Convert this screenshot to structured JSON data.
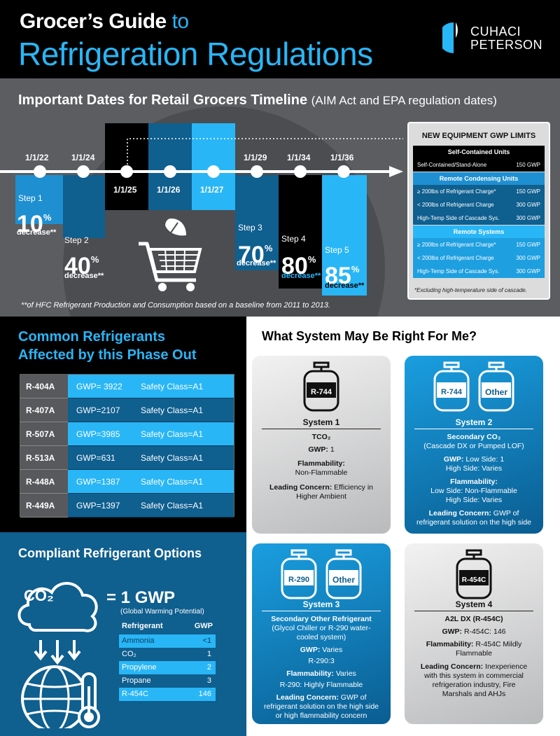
{
  "header": {
    "title_bold": "Grocer’s Guide",
    "title_light": "to",
    "title_line2": "Refrigeration Regulations",
    "logo_line1": "CUHACI",
    "logo_line2": "PETERSON"
  },
  "timeline": {
    "title": "Important Dates for Retail Grocers Timeline",
    "subtitle": "(AIM Act and EPA regulation dates)",
    "dates": [
      "1/1/22",
      "1/1/24",
      "1/1/25",
      "1/1/26",
      "1/1/27",
      "1/1/29",
      "1/1/34",
      "1/1/36"
    ],
    "steps": [
      {
        "label": "Step 1",
        "pct": "10",
        "sup": "%",
        "dec": "decrease**"
      },
      {
        "label": "Step 2",
        "pct": "40",
        "sup": "%",
        "dec": "decrease**"
      },
      {
        "label": "Step 3",
        "pct": "70",
        "sup": "%",
        "dec": "decrease**"
      },
      {
        "label": "Step 4",
        "pct": "80",
        "sup": "%",
        "dec": "decrease**"
      },
      {
        "label": "Step 5",
        "pct": "85",
        "sup": "%",
        "dec": "decrease**"
      }
    ],
    "footnote": "**of HFC Refrigerant Production and Consumption based on a baseline from 2011 to 2013."
  },
  "gwp_limits": {
    "title": "NEW EQUIPMENT GWP LIMITS",
    "sections": [
      {
        "head": "Self-Contained Units",
        "rows": [
          {
            "label": "Self-Contained/Stand-Alone",
            "value": "150 GWP"
          }
        ]
      },
      {
        "head": "Remote Condensing Units",
        "rows": [
          {
            "label": "≥ 200lbs of Refrigerant Charge*",
            "value": "150 GWP"
          },
          {
            "label": "< 200lbs of Refrigerant Charge",
            "value": "300 GWP"
          },
          {
            "label": "High-Temp Side of Cascade Sys.",
            "value": "300 GWP"
          }
        ]
      },
      {
        "head": "Remote Systems",
        "rows": [
          {
            "label": "≥ 200lbs of Refrigerant Charge*",
            "value": "150 GWP"
          },
          {
            "label": "< 200lbs of Refrigerant Charge",
            "value": "300 GWP"
          },
          {
            "label": "High-Temp Side of Cascade Sys.",
            "value": "300 GWP"
          }
        ]
      }
    ],
    "note": "*Excluding high-temperature side of cascade."
  },
  "common": {
    "title_line1": "Common Refrigerants",
    "title_line2": "Affected by this Phase Out",
    "rows": [
      {
        "name": "R-404A",
        "gwp": "GWP= 3922",
        "safety": "Safety Class=A1"
      },
      {
        "name": "R-407A",
        "gwp": "GWP=2107",
        "safety": "Safety Class=A1"
      },
      {
        "name": "R-507A",
        "gwp": "GWP=3985",
        "safety": "Safety Class=A1"
      },
      {
        "name": "R-513A",
        "gwp": "GWP=631",
        "safety": "Safety Class=A1"
      },
      {
        "name": "R-448A",
        "gwp": "GWP=1387",
        "safety": "Safety Class=A1"
      },
      {
        "name": "R-449A",
        "gwp": "GWP=1397",
        "safety": "Safety Class=A1"
      }
    ]
  },
  "compliant": {
    "title": "Compliant Refrigerant Options",
    "co2": "CO₂",
    "equals": "= 1 GWP",
    "equals_sub": "(Global Warming Potential)",
    "col_ref": "Refrigerant",
    "col_gwp": "GWP",
    "rows": [
      {
        "name": "Ammonia",
        "gwp": "<1"
      },
      {
        "name": "CO₂",
        "gwp": "1"
      },
      {
        "name": "Propylene",
        "gwp": "2"
      },
      {
        "name": "Propane",
        "gwp": "3"
      },
      {
        "name": "R-454C",
        "gwp": "146"
      }
    ]
  },
  "systems": {
    "title": "What System May Be Right For Me?",
    "s1": {
      "tank": "R-744",
      "name": "System 1",
      "type": "TCO₂",
      "gwp_label": "GWP:",
      "gwp": "1",
      "flam_label": "Flammability:",
      "flam": "Non-Flammable",
      "concern_label": "Leading Concern:",
      "concern1": "Efficiency in",
      "concern2": "Higher Ambient"
    },
    "s2": {
      "tank1": "R-744",
      "tank2": "Other",
      "name": "System 2",
      "type": "Secondary CO₂",
      "type_sub": "(Cascade DX or Pumped LOF)",
      "gwp_label": "GWP:",
      "gwp1": "Low Side: 1",
      "gwp2": "High Side: Varies",
      "flam_label": "Flammability:",
      "flam1": "Low Side: Non-Flammable",
      "flam2": "High Side: Varies",
      "concern_label": "Leading Concern:",
      "concern1": "GWP of",
      "concern2": "refrigerant solution on the high side"
    },
    "s3": {
      "tank1": "R-290",
      "tank2": "Other",
      "name": "System 3",
      "type": "Secondary Other Refrigerant",
      "type_sub1": "(Glycol Chiller or R-290 water-",
      "type_sub2": "cooled system)",
      "gwp_label": "GWP:",
      "gwp1": "Varies",
      "gwp2": "R-290:3",
      "flam_label": "Flammability:",
      "flam1": "Varies",
      "flam2": "R-290: Highly Flammable",
      "concern_label": "Leading Concern:",
      "concern1": "GWP of",
      "concern2": "refrigerant solution on the high side",
      "concern3": "or high flammability concern"
    },
    "s4": {
      "tank": "R-454C",
      "name": "System 4",
      "type": "A2L DX (R-454C)",
      "gwp_label": "GWP:",
      "gwp": "R-454C: 146",
      "flam_label": "Flammability:",
      "flam1": "R-454C Mildly",
      "flam2": "Flammable",
      "concern_label": "Leading Concern:",
      "concern1": "Inexperience",
      "concern2": "with this system in commercial",
      "concern3": "refrigeration industry, Fire",
      "concern4": "Marshals and AHJs"
    }
  },
  "colors": {
    "accent": "#29b6f6",
    "dark_blue": "#0f5f8f",
    "mid_blue": "#1e8fd0",
    "gray": "#5b5d61"
  }
}
